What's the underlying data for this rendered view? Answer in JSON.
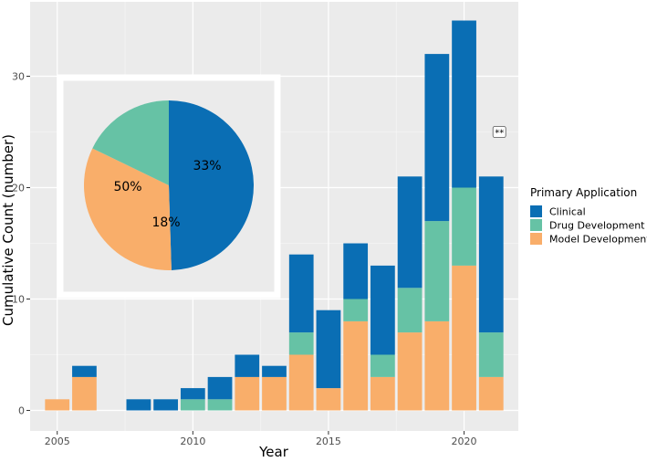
{
  "chart_data": [
    {
      "type": "bar",
      "stacked": true,
      "xlabel": "Year",
      "ylabel": "Cumulative Count (number)",
      "ylim": [
        0,
        35
      ],
      "xlim": [
        2004,
        2022
      ],
      "x_ticks": [
        2005,
        2010,
        2015,
        2020
      ],
      "y_ticks": [
        0,
        10,
        20,
        30
      ],
      "grid": true,
      "legend": {
        "title": "Primary Application",
        "position": "right",
        "entries": [
          "Clinical",
          "Drug Development",
          "Model Development"
        ]
      },
      "categories": [
        2005,
        2006,
        2008,
        2009,
        2010,
        2011,
        2012,
        2013,
        2014,
        2015,
        2016,
        2017,
        2018,
        2019,
        2020,
        2021
      ],
      "series": [
        {
          "name": "Model Development",
          "color": "#F9AE6A",
          "values": [
            1,
            3,
            0,
            0,
            0,
            0,
            3,
            3,
            5,
            2,
            8,
            3,
            7,
            8,
            13,
            3
          ]
        },
        {
          "name": "Drug Development",
          "color": "#66C2A5",
          "values": [
            0,
            0,
            0,
            0,
            1,
            1,
            0,
            0,
            2,
            0,
            2,
            2,
            4,
            9,
            7,
            4
          ]
        },
        {
          "name": "Clinical",
          "color": "#0A6EB4",
          "values": [
            0,
            1,
            1,
            1,
            1,
            2,
            2,
            1,
            7,
            7,
            5,
            8,
            10,
            15,
            15,
            14
          ]
        }
      ],
      "annotations": [
        {
          "text": "**",
          "x": 2021.3,
          "y": 25
        }
      ]
    },
    {
      "type": "pie",
      "labels": [
        "Clinical",
        "Model Development",
        "Drug Development"
      ],
      "values": [
        50,
        33,
        18
      ],
      "value_labels": [
        "50%",
        "33%",
        "18%"
      ],
      "colors": [
        "#0A6EB4",
        "#F9AE6A",
        "#66C2A5"
      ]
    }
  ]
}
